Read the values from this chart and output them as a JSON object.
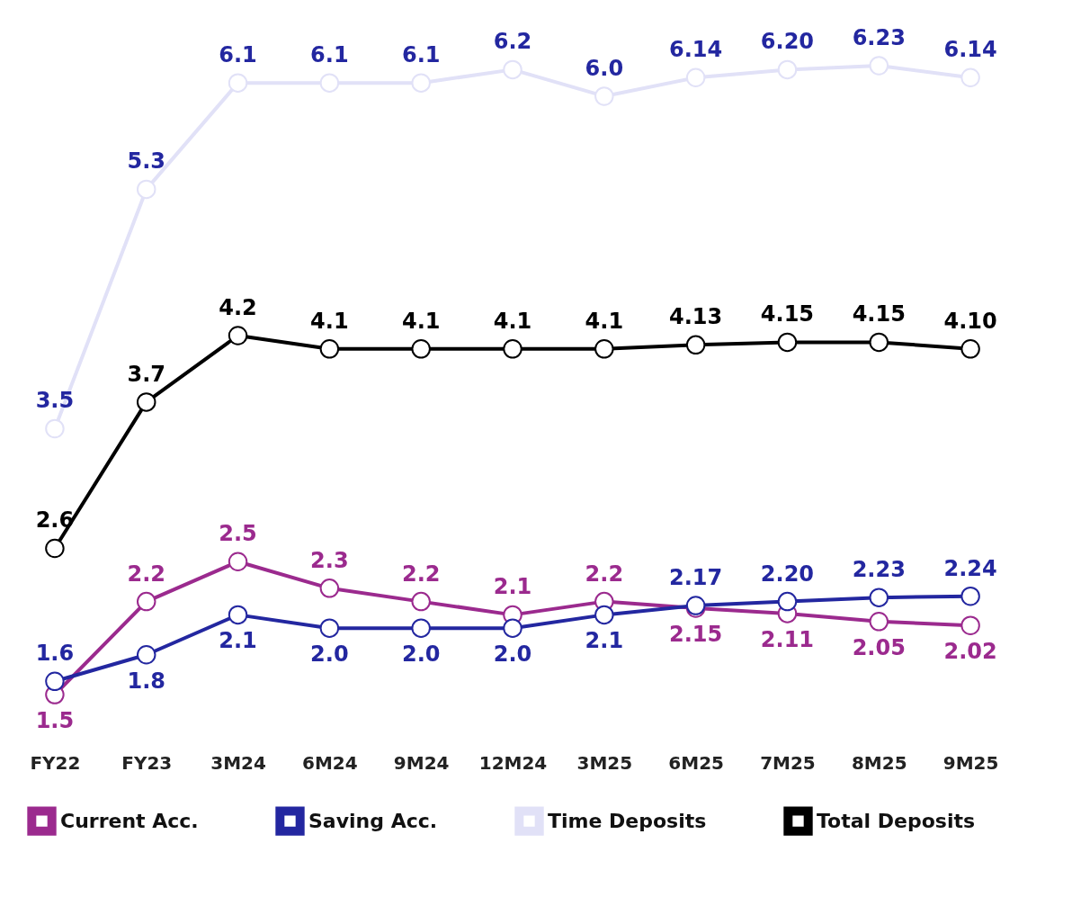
{
  "chart_data": {
    "type": "line",
    "categories": [
      "FY22",
      "FY23",
      "3M24",
      "6M24",
      "9M24",
      "12M24",
      "3M25",
      "6M25",
      "7M25",
      "8M25",
      "9M25"
    ],
    "series": [
      {
        "name": "Current Acc.",
        "color": "#9b2a8e",
        "values": [
          1.5,
          2.2,
          2.5,
          2.3,
          2.2,
          2.1,
          2.2,
          2.15,
          2.11,
          2.05,
          2.02
        ],
        "value_labels": [
          "1.5",
          "2.2",
          "2.5",
          "2.3",
          "2.2",
          "2.1",
          "2.2",
          "2.15",
          "2.11",
          "2.05",
          "2.02"
        ]
      },
      {
        "name": "Saving Acc.",
        "color": "#2327a0",
        "values": [
          1.6,
          1.8,
          2.1,
          2.0,
          2.0,
          2.0,
          2.1,
          2.17,
          2.2,
          2.23,
          2.24
        ],
        "value_labels": [
          "1.6",
          "1.8",
          "2.1",
          "2.0",
          "2.0",
          "2.0",
          "2.1",
          "2.17",
          "2.20",
          "2.23",
          "2.24"
        ]
      },
      {
        "name": "Time Deposits",
        "color": "#e1e1f7",
        "values": [
          3.5,
          5.3,
          6.1,
          6.1,
          6.1,
          6.2,
          6.0,
          6.14,
          6.2,
          6.23,
          6.14
        ],
        "value_labels": [
          "3.5",
          "5.3",
          "6.1",
          "6.1",
          "6.1",
          "6.2",
          "6.0",
          "6.14",
          "6.20",
          "6.23",
          "6.14"
        ]
      },
      {
        "name": "Total Deposits",
        "color": "#000000",
        "values": [
          2.6,
          3.7,
          4.2,
          4.1,
          4.1,
          4.1,
          4.1,
          4.13,
          4.15,
          4.15,
          4.1
        ],
        "value_labels": [
          "2.6",
          "3.7",
          "4.2",
          "4.1",
          "4.1",
          "4.1",
          "4.1",
          "4.13",
          "4.15",
          "4.15",
          "4.10"
        ]
      }
    ],
    "legend": "bottom",
    "marker": "circle",
    "line_style": "solid",
    "grid": false
  }
}
